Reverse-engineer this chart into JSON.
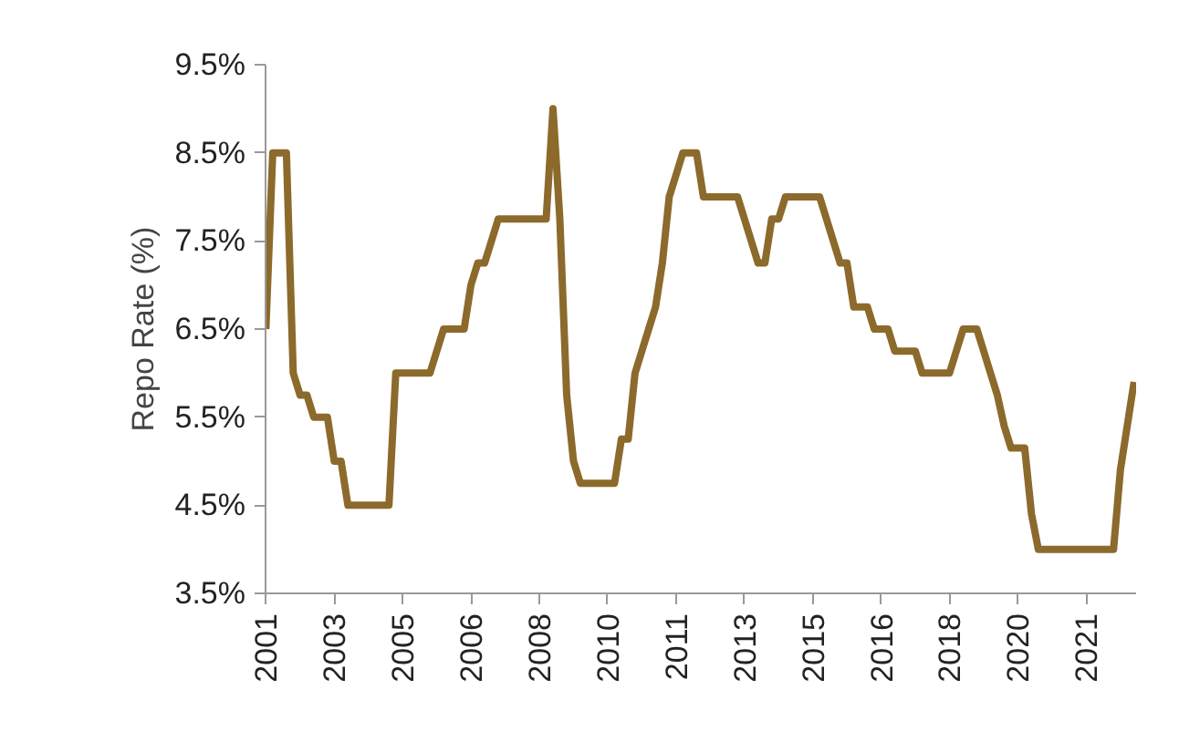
{
  "chart_data": {
    "type": "line",
    "ylabel": "Repo Rate (%)",
    "categories": [
      "2001",
      null,
      null,
      null,
      null,
      null,
      null,
      null,
      null,
      null,
      "2003",
      null,
      null,
      null,
      null,
      null,
      null,
      null,
      null,
      null,
      "2005",
      null,
      null,
      null,
      null,
      null,
      null,
      null,
      null,
      null,
      "2006",
      null,
      null,
      null,
      null,
      null,
      null,
      null,
      null,
      null,
      "2008",
      null,
      null,
      null,
      null,
      null,
      null,
      null,
      null,
      null,
      "2010",
      null,
      null,
      null,
      null,
      null,
      null,
      null,
      null,
      null,
      "2011",
      null,
      null,
      null,
      null,
      null,
      null,
      null,
      null,
      null,
      "2013",
      null,
      null,
      null,
      null,
      null,
      null,
      null,
      null,
      null,
      "2015",
      null,
      null,
      null,
      null,
      null,
      null,
      null,
      null,
      null,
      "2016",
      null,
      null,
      null,
      null,
      null,
      null,
      null,
      null,
      null,
      "2018",
      null,
      null,
      null,
      null,
      null,
      null,
      null,
      null,
      null,
      "2020",
      null,
      null,
      null,
      null,
      null,
      null,
      null,
      null,
      null,
      "2021",
      null,
      null,
      null,
      null,
      null,
      null,
      null
    ],
    "series": [
      {
        "color": "#8c6a2c",
        "values": [
          6.5,
          8.5,
          8.5,
          8.5,
          6.0,
          5.75,
          5.75,
          5.5,
          5.5,
          5.5,
          5.0,
          5.0,
          4.5,
          4.5,
          4.5,
          4.5,
          4.5,
          4.5,
          4.5,
          6.0,
          6.0,
          6.0,
          6.0,
          6.0,
          6.0,
          6.25,
          6.5,
          6.5,
          6.5,
          6.5,
          7.0,
          7.25,
          7.25,
          7.5,
          7.75,
          7.75,
          7.75,
          7.75,
          7.75,
          7.75,
          7.75,
          7.75,
          9.0,
          7.75,
          5.75,
          5.0,
          4.75,
          4.75,
          4.75,
          4.75,
          4.75,
          4.75,
          5.25,
          5.25,
          6.0,
          6.25,
          6.5,
          6.75,
          7.25,
          8.0,
          8.25,
          8.5,
          8.5,
          8.5,
          8.0,
          8.0,
          8.0,
          8.0,
          8.0,
          8.0,
          7.75,
          7.5,
          7.25,
          7.25,
          7.75,
          7.75,
          8.0,
          8.0,
          8.0,
          8.0,
          8.0,
          8.0,
          7.75,
          7.5,
          7.25,
          7.25,
          6.75,
          6.75,
          6.75,
          6.5,
          6.5,
          6.5,
          6.25,
          6.25,
          6.25,
          6.25,
          6.0,
          6.0,
          6.0,
          6.0,
          6.0,
          6.25,
          6.5,
          6.5,
          6.5,
          6.25,
          6.0,
          5.75,
          5.4,
          5.15,
          5.15,
          5.15,
          4.4,
          4.0,
          4.0,
          4.0,
          4.0,
          4.0,
          4.0,
          4.0,
          4.0,
          4.0,
          4.0,
          4.0,
          4.0,
          4.9,
          5.4,
          5.9
        ]
      }
    ],
    "ylim": [
      3.5,
      9.5
    ],
    "yticks": [
      {
        "value": 3.5,
        "label": "3.5%"
      },
      {
        "value": 4.5,
        "label": "4.5%"
      },
      {
        "value": 5.5,
        "label": "5.5%"
      },
      {
        "value": 6.5,
        "label": "6.5%"
      },
      {
        "value": 7.5,
        "label": "7.5%"
      },
      {
        "value": 8.5,
        "label": "8.5%"
      },
      {
        "value": 9.5,
        "label": "9.5%"
      }
    ],
    "grid": false,
    "marker": "none",
    "line_style": "solid"
  }
}
